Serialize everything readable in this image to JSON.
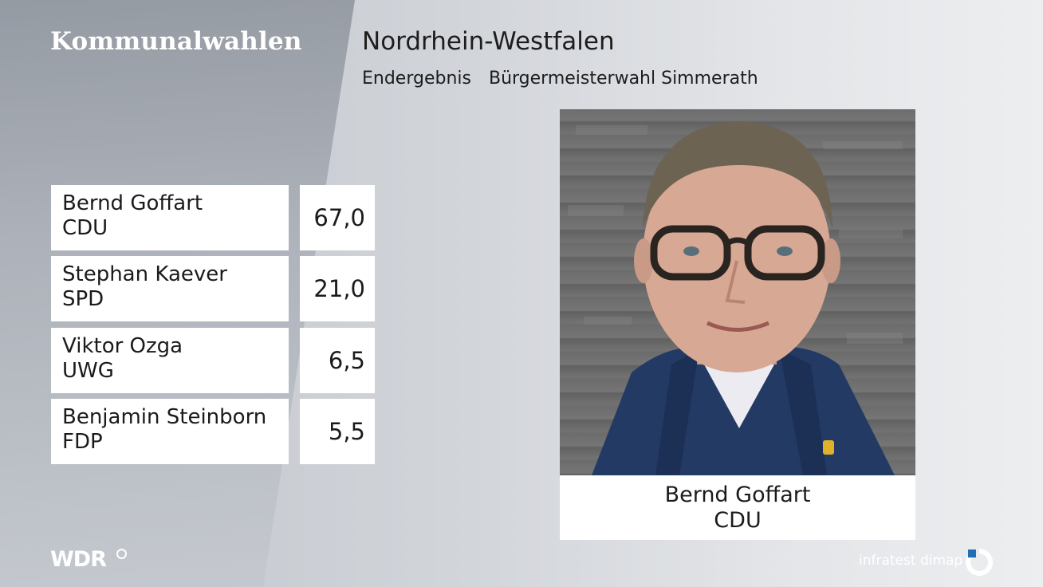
{
  "header": {
    "brand": "Kommunalwahlen",
    "region": "Nordrhein-Westfalen",
    "status": "Endergebnis",
    "election": "Bürgermeisterwahl Simmerath"
  },
  "results": [
    {
      "name": "Bernd Goffart",
      "party": "CDU",
      "value": "67,0"
    },
    {
      "name": "Stephan Kaever",
      "party": "SPD",
      "value": "21,0"
    },
    {
      "name": "Viktor Ozga",
      "party": "UWG",
      "value": "6,5"
    },
    {
      "name": "Benjamin Steinborn",
      "party": "FDP",
      "value": "5,5"
    }
  ],
  "winner": {
    "name": "Bernd Goffart",
    "party": "CDU"
  },
  "footer": {
    "broadcaster": "WDR",
    "pollster": "infratest dimap"
  },
  "colors": {
    "text": "#1b1b1b",
    "box": "#ffffff",
    "jacket": "#233a64",
    "pollster_accent": "#1f6fb5"
  },
  "icons": {
    "broadcaster_mark": "registered-circle-icon",
    "pollster_mark": "infratest-dimap-logo-icon"
  }
}
